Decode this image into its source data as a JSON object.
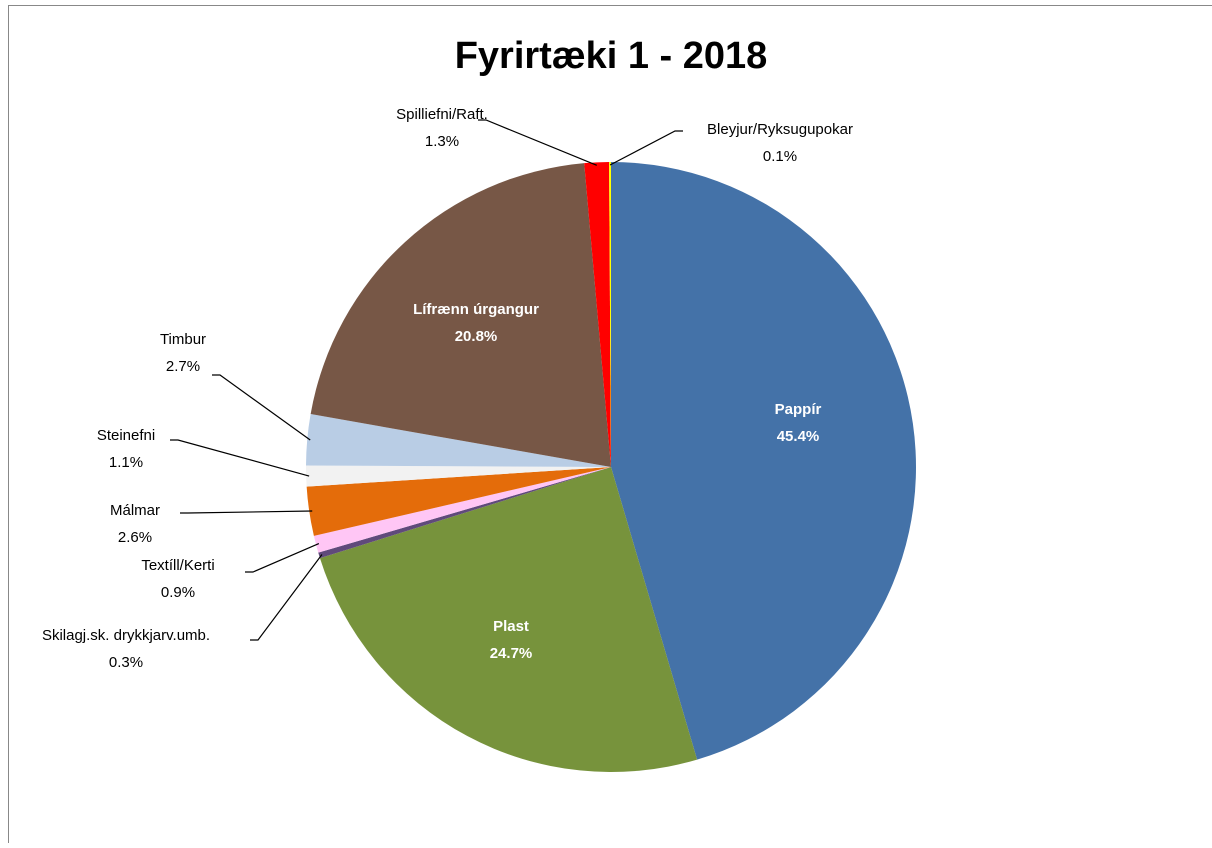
{
  "chart_data": {
    "type": "pie",
    "title": "Fyrirtæki 1 - 2018",
    "categories": [
      "Pappír",
      "Plast",
      "Skilagj.sk. drykkjarv.umb.",
      "Textíll/Kerti",
      "Málmar",
      "Steinefni",
      "Timbur",
      "Lífrænn úrgangur",
      "Spilliefni/Raft.",
      "Bleyjur/Ryksugupokar"
    ],
    "values": [
      45.4,
      24.7,
      0.3,
      0.9,
      2.6,
      1.1,
      2.7,
      20.8,
      1.3,
      0.1
    ],
    "value_labels": [
      "45.4%",
      "24.7%",
      "0.3%",
      "0.9%",
      "2.6%",
      "1.1%",
      "2.7%",
      "20.8%",
      "1.3%",
      "0.1%"
    ],
    "colors": [
      "#4472a8",
      "#77933c",
      "#604a7b",
      "#ffc6f5",
      "#e46c0a",
      "#f2f2f2",
      "#b9cde5",
      "#775746",
      "#ff0000",
      "#ffff00"
    ]
  }
}
